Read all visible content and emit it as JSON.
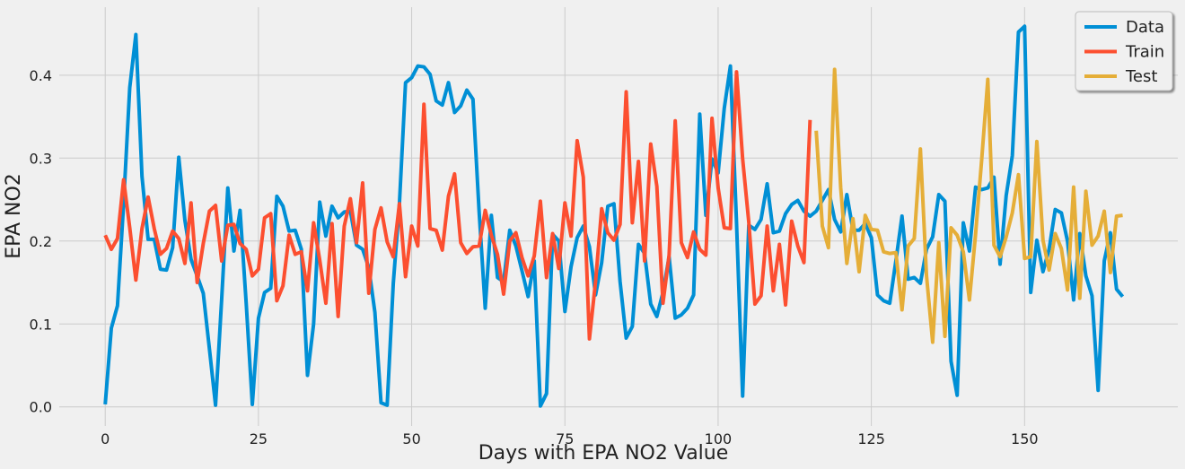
{
  "chart_data": {
    "type": "line",
    "title": "",
    "xlabel": "Days with EPA NO2 Value",
    "ylabel": "EPA NO2",
    "xlim": [
      -7.5,
      175
    ],
    "ylim": [
      -0.023,
      0.482
    ],
    "xticks": [
      0,
      25,
      50,
      75,
      100,
      125,
      150
    ],
    "yticks": [
      0.0,
      0.1,
      0.2,
      0.3,
      0.4
    ],
    "xtick_labels": [
      "0",
      "25",
      "50",
      "75",
      "100",
      "125",
      "150"
    ],
    "ytick_labels": [
      "0.0",
      "0.1",
      "0.2",
      "0.3",
      "0.4"
    ],
    "grid": true,
    "legend_position": "top-right",
    "series": [
      {
        "name": "Data",
        "color": "#008fd5",
        "x_start": 0,
        "values": [
          0.003,
          0.095,
          0.122,
          0.245,
          0.385,
          0.449,
          0.278,
          0.202,
          0.202,
          0.166,
          0.165,
          0.192,
          0.301,
          0.225,
          0.178,
          0.158,
          0.137,
          0.07,
          0.002,
          0.13,
          0.264,
          0.188,
          0.237,
          0.125,
          0.003,
          0.107,
          0.138,
          0.143,
          0.254,
          0.242,
          0.212,
          0.213,
          0.19,
          0.038,
          0.1,
          0.247,
          0.206,
          0.242,
          0.228,
          0.235,
          0.236,
          0.195,
          0.19,
          0.168,
          0.114,
          0.005,
          0.002,
          0.149,
          0.245,
          0.391,
          0.397,
          0.411,
          0.41,
          0.401,
          0.369,
          0.364,
          0.391,
          0.355,
          0.363,
          0.382,
          0.371,
          0.236,
          0.119,
          0.231,
          0.156,
          0.151,
          0.213,
          0.194,
          0.164,
          0.133,
          0.176,
          0.001,
          0.016,
          0.208,
          0.2,
          0.115,
          0.169,
          0.204,
          0.218,
          0.193,
          0.135,
          0.174,
          0.242,
          0.245,
          0.151,
          0.083,
          0.097,
          0.196,
          0.185,
          0.124,
          0.109,
          0.138,
          0.181,
          0.107,
          0.111,
          0.119,
          0.135,
          0.353,
          0.231,
          0.299,
          0.282,
          0.36,
          0.411,
          0.222,
          0.013,
          0.219,
          0.214,
          0.226,
          0.269,
          0.21,
          0.212,
          0.233,
          0.244,
          0.249,
          0.236,
          0.23,
          0.236,
          0.249,
          0.262,
          0.226,
          0.211,
          0.256,
          0.213,
          0.213,
          0.221,
          0.204,
          0.135,
          0.128,
          0.125,
          0.176,
          0.23,
          0.154,
          0.156,
          0.149,
          0.19,
          0.205,
          0.256,
          0.248,
          0.055,
          0.014,
          0.222,
          0.188,
          0.265,
          0.262,
          0.264,
          0.277,
          0.172,
          0.255,
          0.303,
          0.452,
          0.459,
          0.138,
          0.201,
          0.163,
          0.19,
          0.238,
          0.234,
          0.2,
          0.129,
          0.209,
          0.158,
          0.134,
          0.02,
          0.176,
          0.21,
          0.142,
          0.133
        ]
      },
      {
        "name": "Train",
        "color": "#fc4f30",
        "x_start": 0,
        "values": [
          0.207,
          0.19,
          0.203,
          0.274,
          0.216,
          0.153,
          0.215,
          0.253,
          0.215,
          0.184,
          0.191,
          0.212,
          0.203,
          0.173,
          0.246,
          0.15,
          0.197,
          0.236,
          0.243,
          0.176,
          0.219,
          0.22,
          0.197,
          0.19,
          0.158,
          0.166,
          0.228,
          0.233,
          0.128,
          0.146,
          0.207,
          0.184,
          0.187,
          0.14,
          0.222,
          0.177,
          0.125,
          0.221,
          0.109,
          0.218,
          0.251,
          0.198,
          0.27,
          0.137,
          0.214,
          0.24,
          0.199,
          0.181,
          0.245,
          0.157,
          0.218,
          0.194,
          0.365,
          0.215,
          0.213,
          0.189,
          0.254,
          0.281,
          0.198,
          0.185,
          0.193,
          0.194,
          0.237,
          0.207,
          0.184,
          0.136,
          0.2,
          0.21,
          0.18,
          0.158,
          0.182,
          0.248,
          0.156,
          0.209,
          0.167,
          0.246,
          0.206,
          0.321,
          0.277,
          0.082,
          0.151,
          0.239,
          0.21,
          0.201,
          0.22,
          0.38,
          0.222,
          0.296,
          0.176,
          0.317,
          0.266,
          0.125,
          0.183,
          0.345,
          0.198,
          0.18,
          0.211,
          0.19,
          0.183,
          0.348,
          0.264,
          0.216,
          0.215,
          0.404,
          0.299,
          0.223,
          0.124,
          0.134,
          0.218,
          0.14,
          0.196,
          0.123,
          0.224,
          0.194,
          0.174,
          0.346
        ]
      },
      {
        "name": "Test",
        "color": "#e5ae38",
        "x_start": 116,
        "values": [
          0.333,
          0.218,
          0.192,
          0.407,
          0.264,
          0.173,
          0.227,
          0.163,
          0.231,
          0.214,
          0.213,
          0.187,
          0.185,
          0.186,
          0.117,
          0.194,
          0.203,
          0.311,
          0.158,
          0.078,
          0.198,
          0.085,
          0.216,
          0.207,
          0.187,
          0.129,
          0.208,
          0.298,
          0.395,
          0.195,
          0.181,
          0.205,
          0.234,
          0.28,
          0.179,
          0.181,
          0.32,
          0.201,
          0.165,
          0.209,
          0.191,
          0.141,
          0.265,
          0.131,
          0.26,
          0.195,
          0.206,
          0.236,
          0.162,
          0.23,
          0.231
        ]
      }
    ]
  }
}
